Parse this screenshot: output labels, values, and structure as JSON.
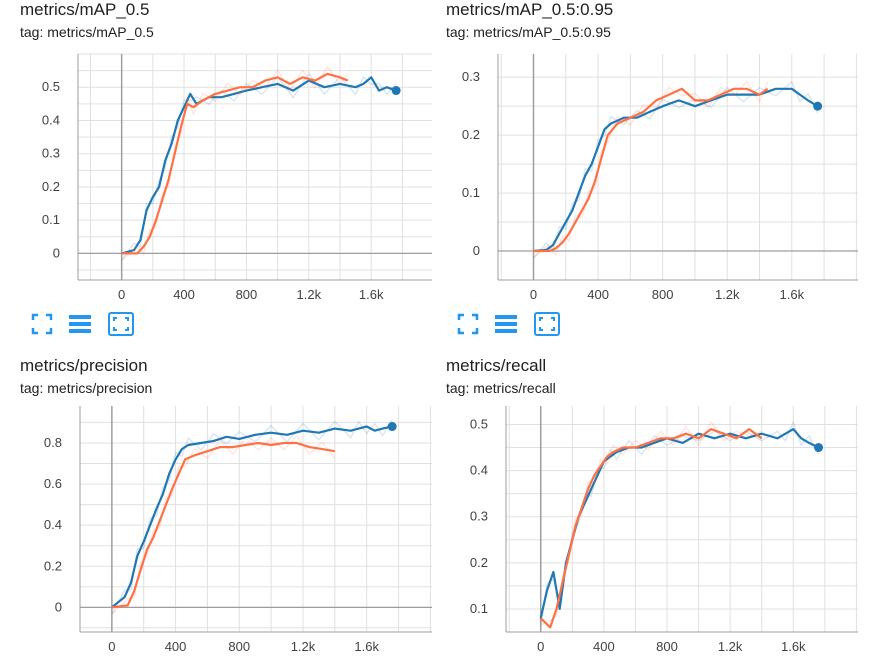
{
  "colors": {
    "series_a": "#1f77b4",
    "series_b": "#ff7043",
    "grid": "#e0e0e0",
    "axis": "#9e9e9e",
    "icon": "#2196f3"
  },
  "icons": [
    "fullscreen-icon",
    "toggle-y-log-icon",
    "fit-domain-icon"
  ],
  "chart_data": [
    {
      "type": "line",
      "title": "metrics/mAP_0.5",
      "tag": "tag: metrics/mAP_0.5",
      "x_ticks": [
        "0",
        "400",
        "800",
        "1.2k",
        "1.6k"
      ],
      "y_ticks": [
        "0",
        "0.1",
        "0.2",
        "0.3",
        "0.4",
        "0.5"
      ],
      "xlim": [
        -280,
        1990
      ],
      "ylim": [
        -0.08,
        0.6
      ],
      "grid": true,
      "series": [
        {
          "x": [
            0,
            80,
            120,
            160,
            200,
            240,
            280,
            320,
            360,
            400,
            440,
            480,
            560,
            640,
            720,
            800,
            900,
            1000,
            1100,
            1200,
            1300,
            1400,
            1500,
            1550,
            1600,
            1650,
            1700,
            1760
          ],
          "values": [
            0,
            0.01,
            0.04,
            0.13,
            0.17,
            0.2,
            0.28,
            0.33,
            0.4,
            0.44,
            0.48,
            0.45,
            0.47,
            0.47,
            0.48,
            0.49,
            0.5,
            0.51,
            0.49,
            0.52,
            0.5,
            0.51,
            0.5,
            0.51,
            0.53,
            0.49,
            0.5,
            0.49
          ]
        },
        {
          "x": [
            0,
            100,
            140,
            180,
            220,
            260,
            300,
            340,
            380,
            420,
            460,
            520,
            600,
            680,
            760,
            840,
            920,
            1000,
            1080,
            1160,
            1240,
            1320,
            1400,
            1450
          ],
          "values": [
            0,
            0,
            0.02,
            0.05,
            0.1,
            0.16,
            0.22,
            0.3,
            0.38,
            0.45,
            0.44,
            0.46,
            0.48,
            0.49,
            0.5,
            0.5,
            0.52,
            0.53,
            0.51,
            0.53,
            0.52,
            0.54,
            0.53,
            0.52
          ]
        }
      ]
    },
    {
      "type": "line",
      "title": "metrics/mAP_0.5:0.95",
      "tag": "tag: metrics/mAP_0.5:0.95",
      "x_ticks": [
        "0",
        "400",
        "800",
        "1.2k",
        "1.6k"
      ],
      "y_ticks": [
        "0",
        "0.1",
        "0.2",
        "0.3"
      ],
      "xlim": [
        -220,
        2010
      ],
      "ylim": [
        -0.05,
        0.34
      ],
      "grid": true,
      "series": [
        {
          "x": [
            0,
            80,
            120,
            160,
            200,
            240,
            280,
            320,
            360,
            400,
            440,
            480,
            560,
            640,
            720,
            800,
            900,
            1000,
            1100,
            1200,
            1300,
            1400,
            1500,
            1600,
            1650,
            1700,
            1760
          ],
          "values": [
            0,
            0.002,
            0.01,
            0.03,
            0.05,
            0.07,
            0.1,
            0.13,
            0.15,
            0.18,
            0.21,
            0.22,
            0.23,
            0.23,
            0.24,
            0.25,
            0.26,
            0.25,
            0.26,
            0.27,
            0.27,
            0.27,
            0.28,
            0.28,
            0.27,
            0.26,
            0.25
          ]
        },
        {
          "x": [
            0,
            100,
            140,
            180,
            220,
            260,
            300,
            340,
            380,
            420,
            460,
            520,
            600,
            680,
            760,
            840,
            920,
            1000,
            1080,
            1160,
            1240,
            1320,
            1400,
            1450
          ],
          "values": [
            0,
            0,
            0.005,
            0.015,
            0.03,
            0.05,
            0.07,
            0.09,
            0.12,
            0.16,
            0.2,
            0.22,
            0.23,
            0.24,
            0.26,
            0.27,
            0.28,
            0.26,
            0.26,
            0.27,
            0.28,
            0.28,
            0.27,
            0.28
          ]
        }
      ]
    },
    {
      "type": "line",
      "title": "metrics/precision",
      "tag": "tag: metrics/precision",
      "x_ticks": [
        "0",
        "400",
        "800",
        "1.2k",
        "1.6k"
      ],
      "y_ticks": [
        "0",
        "0.2",
        "0.4",
        "0.6",
        "0.8"
      ],
      "xlim": [
        -200,
        2010
      ],
      "ylim": [
        -0.12,
        0.98
      ],
      "grid": true,
      "series": [
        {
          "x": [
            0,
            80,
            120,
            160,
            200,
            240,
            280,
            320,
            360,
            400,
            440,
            480,
            560,
            640,
            720,
            800,
            900,
            1000,
            1100,
            1200,
            1300,
            1400,
            1500,
            1550,
            1600,
            1650,
            1700,
            1760
          ],
          "values": [
            0,
            0.05,
            0.12,
            0.25,
            0.32,
            0.4,
            0.48,
            0.55,
            0.65,
            0.72,
            0.77,
            0.79,
            0.8,
            0.81,
            0.83,
            0.82,
            0.84,
            0.85,
            0.84,
            0.86,
            0.85,
            0.87,
            0.86,
            0.87,
            0.88,
            0.86,
            0.87,
            0.88
          ]
        },
        {
          "x": [
            0,
            100,
            140,
            180,
            220,
            260,
            300,
            340,
            380,
            420,
            460,
            520,
            600,
            680,
            760,
            840,
            920,
            1000,
            1080,
            1160,
            1240,
            1320,
            1400
          ],
          "values": [
            0,
            0.01,
            0.08,
            0.18,
            0.28,
            0.34,
            0.42,
            0.5,
            0.58,
            0.65,
            0.72,
            0.74,
            0.76,
            0.78,
            0.78,
            0.79,
            0.8,
            0.79,
            0.8,
            0.8,
            0.78,
            0.77,
            0.76
          ]
        }
      ]
    },
    {
      "type": "line",
      "title": "metrics/recall",
      "tag": "tag: metrics/recall",
      "x_ticks": [
        "0",
        "400",
        "800",
        "1.2k",
        "1.6k"
      ],
      "y_ticks": [
        "0.1",
        "0.2",
        "0.3",
        "0.4",
        "0.5"
      ],
      "xlim": [
        -220,
        2010
      ],
      "ylim": [
        0.05,
        0.54
      ],
      "grid": true,
      "series": [
        {
          "x": [
            0,
            40,
            80,
            120,
            160,
            200,
            240,
            280,
            320,
            360,
            400,
            440,
            480,
            560,
            640,
            720,
            800,
            900,
            1000,
            1100,
            1200,
            1300,
            1400,
            1500,
            1550,
            1600,
            1650,
            1700,
            1760
          ],
          "values": [
            0.08,
            0.14,
            0.18,
            0.1,
            0.2,
            0.25,
            0.3,
            0.33,
            0.36,
            0.39,
            0.42,
            0.43,
            0.44,
            0.45,
            0.45,
            0.46,
            0.47,
            0.46,
            0.48,
            0.47,
            0.48,
            0.47,
            0.48,
            0.47,
            0.48,
            0.49,
            0.47,
            0.46,
            0.45
          ]
        },
        {
          "x": [
            0,
            60,
            100,
            140,
            180,
            220,
            260,
            300,
            340,
            380,
            420,
            460,
            520,
            600,
            680,
            760,
            840,
            920,
            1000,
            1080,
            1160,
            1240,
            1320,
            1400
          ],
          "values": [
            0.08,
            0.06,
            0.1,
            0.16,
            0.22,
            0.28,
            0.32,
            0.36,
            0.39,
            0.41,
            0.43,
            0.44,
            0.45,
            0.45,
            0.46,
            0.47,
            0.47,
            0.48,
            0.47,
            0.49,
            0.48,
            0.47,
            0.49,
            0.47
          ]
        }
      ]
    }
  ]
}
